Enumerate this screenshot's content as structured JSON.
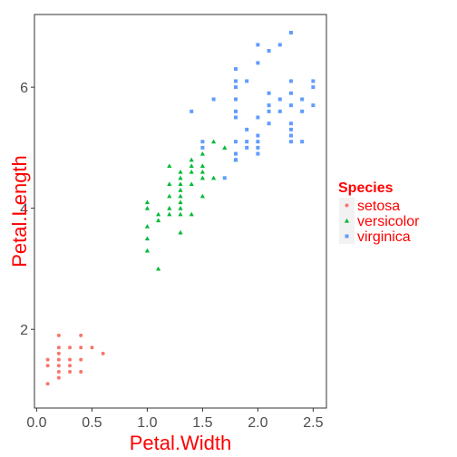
{
  "chart_data": {
    "type": "scatter",
    "title": "",
    "xlabel": "Petal.Width",
    "ylabel": "Petal.Length",
    "xlim": [
      -0.02,
      2.62
    ],
    "ylim": [
      0.7,
      7.2
    ],
    "xticks": [
      0.0,
      0.5,
      1.0,
      1.5,
      2.0,
      2.5
    ],
    "xtick_labels": [
      "0.0",
      "0.5",
      "1.0",
      "1.5",
      "2.0",
      "2.5"
    ],
    "yticks": [
      2,
      4,
      6
    ],
    "ytick_labels": [
      "2",
      "4",
      "6"
    ],
    "grid": false,
    "legend": {
      "title": "Species",
      "placement": "right"
    },
    "series": [
      {
        "name": "setosa",
        "color": "#F8766D",
        "shape": "circle",
        "points": [
          [
            0.1,
            1.1
          ],
          [
            0.1,
            1.4
          ],
          [
            0.1,
            1.5
          ],
          [
            0.2,
            1.2
          ],
          [
            0.2,
            1.3
          ],
          [
            0.2,
            1.4
          ],
          [
            0.2,
            1.5
          ],
          [
            0.2,
            1.6
          ],
          [
            0.2,
            1.7
          ],
          [
            0.2,
            1.9
          ],
          [
            0.3,
            1.3
          ],
          [
            0.3,
            1.4
          ],
          [
            0.3,
            1.5
          ],
          [
            0.3,
            1.7
          ],
          [
            0.4,
            1.3
          ],
          [
            0.4,
            1.5
          ],
          [
            0.4,
            1.7
          ],
          [
            0.4,
            1.9
          ],
          [
            0.5,
            1.7
          ],
          [
            0.6,
            1.6
          ]
        ]
      },
      {
        "name": "versicolor",
        "color": "#00BA38",
        "shape": "triangle",
        "points": [
          [
            1.0,
            3.3
          ],
          [
            1.0,
            3.5
          ],
          [
            1.0,
            3.7
          ],
          [
            1.0,
            4.0
          ],
          [
            1.0,
            4.1
          ],
          [
            1.1,
            3.0
          ],
          [
            1.1,
            3.8
          ],
          [
            1.1,
            3.9
          ],
          [
            1.2,
            3.9
          ],
          [
            1.2,
            4.0
          ],
          [
            1.2,
            4.2
          ],
          [
            1.2,
            4.4
          ],
          [
            1.2,
            4.7
          ],
          [
            1.3,
            3.6
          ],
          [
            1.3,
            3.9
          ],
          [
            1.3,
            4.0
          ],
          [
            1.3,
            4.1
          ],
          [
            1.3,
            4.2
          ],
          [
            1.3,
            4.3
          ],
          [
            1.3,
            4.4
          ],
          [
            1.3,
            4.5
          ],
          [
            1.3,
            4.6
          ],
          [
            1.4,
            3.9
          ],
          [
            1.4,
            4.4
          ],
          [
            1.4,
            4.6
          ],
          [
            1.4,
            4.7
          ],
          [
            1.4,
            4.8
          ],
          [
            1.5,
            4.2
          ],
          [
            1.5,
            4.5
          ],
          [
            1.5,
            4.6
          ],
          [
            1.5,
            4.7
          ],
          [
            1.5,
            4.9
          ],
          [
            1.6,
            4.5
          ],
          [
            1.6,
            5.1
          ],
          [
            1.7,
            5.0
          ],
          [
            1.8,
            4.8
          ]
        ]
      },
      {
        "name": "virginica",
        "color": "#619CFF",
        "shape": "square",
        "points": [
          [
            1.4,
            5.6
          ],
          [
            1.5,
            5.0
          ],
          [
            1.5,
            5.1
          ],
          [
            1.6,
            5.8
          ],
          [
            1.7,
            4.5
          ],
          [
            1.8,
            4.8
          ],
          [
            1.8,
            4.9
          ],
          [
            1.8,
            5.1
          ],
          [
            1.8,
            5.5
          ],
          [
            1.8,
            5.6
          ],
          [
            1.8,
            5.8
          ],
          [
            1.8,
            6.0
          ],
          [
            1.8,
            6.1
          ],
          [
            1.8,
            6.3
          ],
          [
            1.9,
            5.0
          ],
          [
            1.9,
            5.1
          ],
          [
            1.9,
            5.3
          ],
          [
            1.9,
            6.1
          ],
          [
            2.0,
            4.9
          ],
          [
            2.0,
            5.0
          ],
          [
            2.0,
            5.1
          ],
          [
            2.0,
            5.2
          ],
          [
            2.0,
            5.5
          ],
          [
            2.0,
            6.4
          ],
          [
            2.0,
            6.7
          ],
          [
            2.1,
            5.4
          ],
          [
            2.1,
            5.6
          ],
          [
            2.1,
            5.7
          ],
          [
            2.1,
            5.9
          ],
          [
            2.1,
            6.6
          ],
          [
            2.2,
            5.6
          ],
          [
            2.2,
            5.8
          ],
          [
            2.2,
            6.7
          ],
          [
            2.3,
            5.1
          ],
          [
            2.3,
            5.2
          ],
          [
            2.3,
            5.3
          ],
          [
            2.3,
            5.4
          ],
          [
            2.3,
            5.7
          ],
          [
            2.3,
            5.9
          ],
          [
            2.3,
            6.1
          ],
          [
            2.3,
            6.9
          ],
          [
            2.4,
            5.1
          ],
          [
            2.4,
            5.6
          ],
          [
            2.4,
            5.8
          ],
          [
            2.5,
            5.7
          ],
          [
            2.5,
            6.0
          ],
          [
            2.5,
            6.1
          ]
        ]
      }
    ]
  }
}
